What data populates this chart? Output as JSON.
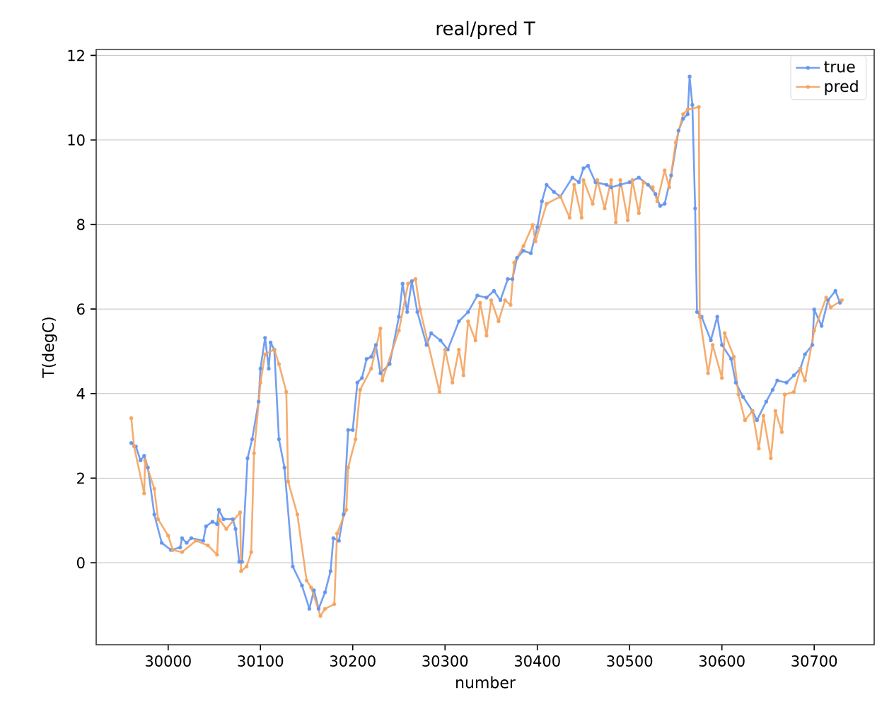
{
  "chart_data": {
    "type": "line",
    "title": "real/pred T",
    "xlabel": "number",
    "ylabel": "T(degC)",
    "xlim": [
      29922,
      30765
    ],
    "ylim": [
      -1.94,
      12.14
    ],
    "xticks": [
      30000,
      30100,
      30200,
      30300,
      30400,
      30500,
      30600,
      30700
    ],
    "yticks": [
      0,
      2,
      4,
      6,
      8,
      10,
      12
    ],
    "grid": "y",
    "legend": "top right",
    "marker": "circle",
    "line_style": "solid",
    "series": [
      {
        "name": "true",
        "color": "#6495ed",
        "x": [
          29960,
          29965,
          29970,
          29974,
          29978,
          29985,
          29993,
          30003,
          30013,
          30015,
          30020,
          30025,
          30038,
          30041,
          30048,
          30053,
          30055,
          30060,
          30070,
          30073,
          30077,
          30080,
          30086,
          30091,
          30098,
          30100,
          30105,
          30109,
          30111,
          30115,
          30120,
          30126,
          30135,
          30145,
          30153,
          30158,
          30163,
          30170,
          30176,
          30179,
          30185,
          30190,
          30195,
          30200,
          30205,
          30210,
          30215,
          30220,
          30225,
          30230,
          30240,
          30250,
          30254,
          30259,
          30264,
          30270,
          30280,
          30285,
          30295,
          30303,
          30315,
          30325,
          30335,
          30345,
          30353,
          30360,
          30368,
          30373,
          30378,
          30385,
          30393,
          30400,
          30405,
          30410,
          30418,
          30425,
          30438,
          30445,
          30450,
          30455,
          30463,
          30475,
          30480,
          30490,
          30500,
          30510,
          30520,
          30528,
          30533,
          30538,
          30545,
          30553,
          30558,
          30563,
          30565,
          30568,
          30571,
          30573,
          30578,
          30588,
          30595,
          30600,
          30610,
          30615,
          30623,
          30633,
          30638,
          30648,
          30655,
          30660,
          30670,
          30678,
          30685,
          30690,
          30698,
          30700,
          30708,
          30715,
          30723,
          30728
        ],
        "values": [
          2.83,
          2.75,
          2.42,
          2.53,
          2.25,
          1.14,
          0.47,
          0.3,
          0.36,
          0.58,
          0.47,
          0.58,
          0.52,
          0.86,
          0.97,
          0.91,
          1.25,
          1.03,
          1.03,
          0.8,
          0.02,
          0.02,
          2.47,
          2.92,
          3.81,
          4.59,
          5.32,
          4.59,
          5.21,
          5.04,
          2.92,
          2.25,
          -0.09,
          -0.54,
          -1.09,
          -0.65,
          -1.09,
          -0.7,
          -0.2,
          0.58,
          0.52,
          1.14,
          3.14,
          3.14,
          4.26,
          4.37,
          4.82,
          4.87,
          5.15,
          4.48,
          4.7,
          5.82,
          6.6,
          5.93,
          6.66,
          5.93,
          5.15,
          5.43,
          5.26,
          5.04,
          5.71,
          5.93,
          6.32,
          6.27,
          6.43,
          6.21,
          6.71,
          6.71,
          7.21,
          7.38,
          7.32,
          7.94,
          8.55,
          8.94,
          8.77,
          8.66,
          9.11,
          9.0,
          9.33,
          9.39,
          9.0,
          8.94,
          8.88,
          8.94,
          9.0,
          9.11,
          8.94,
          8.72,
          8.44,
          8.49,
          9.16,
          10.22,
          10.5,
          10.61,
          11.5,
          10.83,
          8.38,
          5.93,
          5.82,
          5.26,
          5.82,
          5.15,
          4.82,
          4.26,
          3.92,
          3.59,
          3.37,
          3.81,
          4.09,
          4.31,
          4.26,
          4.43,
          4.59,
          4.93,
          5.15,
          5.99,
          5.6,
          6.21,
          6.43,
          6.15
        ]
      },
      {
        "name": "pred",
        "color": "#f4a460",
        "x": [
          29960,
          29963,
          29974,
          29975,
          29985,
          29989,
          30000,
          30005,
          30015,
          30030,
          30043,
          30053,
          30055,
          30063,
          30078,
          30079,
          30085,
          30090,
          30093,
          30100,
          30105,
          30115,
          30120,
          30128,
          30130,
          30140,
          30150,
          30155,
          30165,
          30170,
          30180,
          30183,
          30193,
          30195,
          30203,
          30208,
          30220,
          30230,
          30232,
          30250,
          30260,
          30268,
          30273,
          30294,
          30300,
          30308,
          30315,
          30320,
          30325,
          30333,
          30338,
          30345,
          30350,
          30358,
          30365,
          30371,
          30375,
          30385,
          30395,
          30398,
          30410,
          30425,
          30435,
          30440,
          30448,
          30450,
          30460,
          30465,
          30473,
          30480,
          30485,
          30490,
          30498,
          30503,
          30510,
          30515,
          30525,
          30530,
          30538,
          30543,
          30550,
          30558,
          30563,
          30575,
          30576,
          30585,
          30590,
          30600,
          30603,
          30613,
          30618,
          30625,
          30633,
          30640,
          30645,
          30653,
          30658,
          30665,
          30668,
          30678,
          30685,
          30690,
          30700,
          30713,
          30718,
          30730
        ],
        "values": [
          3.42,
          2.75,
          1.64,
          2.42,
          1.75,
          1.03,
          0.64,
          0.3,
          0.25,
          0.52,
          0.41,
          0.19,
          1.03,
          0.8,
          1.19,
          -0.2,
          -0.09,
          0.25,
          2.59,
          4.26,
          4.93,
          5.04,
          4.7,
          4.04,
          1.92,
          1.14,
          -0.42,
          -0.59,
          -1.26,
          -1.09,
          -0.98,
          0.69,
          1.25,
          2.25,
          2.92,
          4.09,
          4.59,
          5.54,
          4.31,
          5.49,
          6.6,
          6.71,
          5.99,
          4.04,
          5.04,
          4.26,
          5.04,
          4.43,
          5.71,
          5.26,
          6.15,
          5.37,
          6.21,
          5.71,
          6.21,
          6.1,
          7.1,
          7.49,
          7.99,
          7.6,
          8.49,
          8.66,
          8.16,
          8.94,
          8.16,
          9.05,
          8.49,
          9.05,
          8.38,
          9.05,
          8.05,
          9.05,
          8.1,
          9.05,
          8.27,
          9.0,
          8.88,
          8.55,
          9.28,
          8.88,
          9.94,
          10.61,
          10.72,
          10.78,
          5.82,
          4.48,
          5.15,
          4.37,
          5.43,
          4.87,
          3.98,
          3.37,
          3.59,
          2.7,
          3.48,
          2.47,
          3.59,
          3.09,
          3.98,
          4.04,
          4.59,
          4.31,
          5.49,
          6.27,
          6.04,
          6.21
        ]
      }
    ]
  }
}
